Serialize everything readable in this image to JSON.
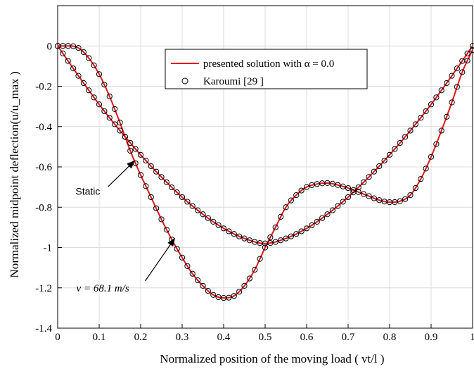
{
  "chart_data": {
    "type": "line",
    "xlabel": "Normalized position of the moving load ( vt/l )",
    "ylabel": "Normalized  midpoint deflection(u/u_max )",
    "xlim": [
      0,
      1
    ],
    "ylim": [
      -1.4,
      0.2
    ],
    "x_ticks": [
      "0",
      "0.1",
      "0.2",
      "0.3",
      "0.4",
      "0.5",
      "0.6",
      "0.7",
      "0.8",
      "0.9",
      "1"
    ],
    "y_ticks": [
      "0",
      "-0.2",
      "-0.4",
      "-0.6",
      "-0.8",
      "-1",
      "-1.2",
      "-1.4"
    ],
    "y_tick_values": [
      0,
      -0.2,
      -0.4,
      -0.6,
      -0.8,
      -1,
      -1.2,
      -1.4
    ],
    "grid": true,
    "legend_position": "top-center",
    "legend": {
      "line_label": "presented solution with α = 0.0",
      "marker_label": "Karoumi [29 ]"
    },
    "series": [
      {
        "name": "presented solution with α = 0.0",
        "style": "line",
        "color": "#e3151a",
        "curves": [
          {
            "label": "Static",
            "x": [
              0,
              0.05,
              0.1,
              0.15,
              0.2,
              0.25,
              0.3,
              0.35,
              0.4,
              0.45,
              0.5,
              0.55,
              0.6,
              0.65,
              0.7,
              0.75,
              0.8,
              0.85,
              0.9,
              0.95,
              1.0
            ],
            "y": [
              0,
              -0.148,
              -0.29,
              -0.42,
              -0.54,
              -0.65,
              -0.75,
              -0.835,
              -0.905,
              -0.955,
              -0.98,
              -0.955,
              -0.905,
              -0.835,
              -0.75,
              -0.65,
              -0.54,
              -0.42,
              -0.29,
              -0.148,
              0
            ]
          },
          {
            "label": "v = 68.1 m/s",
            "x": [
              0,
              0.025,
              0.05,
              0.075,
              0.1,
              0.125,
              0.15,
              0.175,
              0.2,
              0.225,
              0.25,
              0.275,
              0.3,
              0.325,
              0.35,
              0.375,
              0.4,
              0.425,
              0.45,
              0.475,
              0.5,
              0.525,
              0.55,
              0.575,
              0.6,
              0.625,
              0.65,
              0.675,
              0.7,
              0.725,
              0.75,
              0.775,
              0.8,
              0.825,
              0.85,
              0.875,
              0.9,
              0.925,
              0.95,
              0.975,
              1.0
            ],
            "y": [
              0,
              0,
              -0.01,
              -0.06,
              -0.14,
              -0.25,
              -0.38,
              -0.52,
              -0.64,
              -0.75,
              -0.86,
              -0.96,
              -1.05,
              -1.13,
              -1.19,
              -1.235,
              -1.25,
              -1.24,
              -1.19,
              -1.11,
              -1.0,
              -0.9,
              -0.8,
              -0.74,
              -0.7,
              -0.685,
              -0.68,
              -0.69,
              -0.705,
              -0.725,
              -0.745,
              -0.765,
              -0.775,
              -0.77,
              -0.74,
              -0.66,
              -0.55,
              -0.42,
              -0.28,
              -0.13,
              -0.02
            ]
          }
        ]
      },
      {
        "name": "Karoumi [29 ]",
        "style": "markers",
        "marker": "circle",
        "color": "#000000",
        "curves": [
          {
            "label": "Static",
            "x_step": 0.0125
          },
          {
            "label": "v = 68.1 m/s",
            "x_step": 0.0125
          }
        ]
      }
    ],
    "annotations": [
      {
        "text": "Static",
        "at": [
          0.043,
          -0.72
        ],
        "arrow_to": [
          0.185,
          -0.57
        ]
      },
      {
        "text": "v = 68.1 m/s",
        "at": [
          0.045,
          -1.2
        ],
        "arrow_to": [
          0.282,
          -0.955
        ]
      }
    ]
  }
}
